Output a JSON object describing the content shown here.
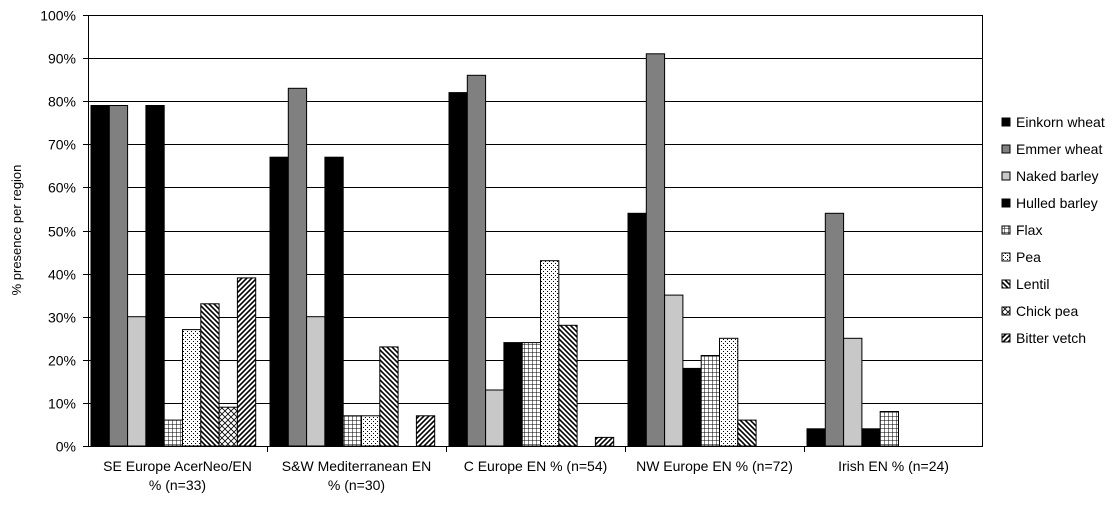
{
  "chart_data": {
    "type": "bar",
    "ylabel": "% presence per region",
    "ylim": [
      0,
      100
    ],
    "y_ticks": [
      "0%",
      "10%",
      "20%",
      "30%",
      "40%",
      "50%",
      "60%",
      "70%",
      "80%",
      "90%",
      "100%"
    ],
    "grid": true,
    "legend_position": "right",
    "categories": [
      [
        "SE Europe AcerNeo/EN",
        "% (n=33)"
      ],
      [
        "S&W Mediterranean EN",
        "% (n=30)"
      ],
      [
        "C Europe EN % (n=54)"
      ],
      [
        "NW Europe EN % (n=72)"
      ],
      [
        "Irish EN % (n=24)"
      ]
    ],
    "series": [
      {
        "name": "Einkorn wheat",
        "values": [
          79,
          67,
          82,
          54,
          4
        ],
        "fill": "#000000",
        "pattern": "solid"
      },
      {
        "name": "Emmer wheat",
        "values": [
          79,
          83,
          86,
          91,
          54
        ],
        "fill": "#808080",
        "pattern": "solid"
      },
      {
        "name": "Naked barley",
        "values": [
          30,
          30,
          13,
          35,
          25
        ],
        "fill": "#c8c8c8",
        "pattern": "solid"
      },
      {
        "name": "Hulled barley",
        "values": [
          79,
          67,
          24,
          18,
          4
        ],
        "fill": "#000000",
        "pattern": "solid"
      },
      {
        "name": "Flax",
        "values": [
          6,
          7,
          24,
          21,
          8
        ],
        "fill": "#ffffff",
        "pattern": "grid"
      },
      {
        "name": "Pea",
        "values": [
          27,
          7,
          43,
          25,
          0
        ],
        "fill": "#ffffff",
        "pattern": "dots"
      },
      {
        "name": "Lentil",
        "values": [
          33,
          23,
          28,
          6,
          0
        ],
        "fill": "#ffffff",
        "pattern": "backslash"
      },
      {
        "name": "Chick pea",
        "values": [
          9,
          0,
          0,
          0,
          0
        ],
        "fill": "#ffffff",
        "pattern": "crosshatch"
      },
      {
        "name": "Bitter vetch",
        "values": [
          39,
          7,
          2,
          0,
          0
        ],
        "fill": "#ffffff",
        "pattern": "slash"
      }
    ]
  }
}
